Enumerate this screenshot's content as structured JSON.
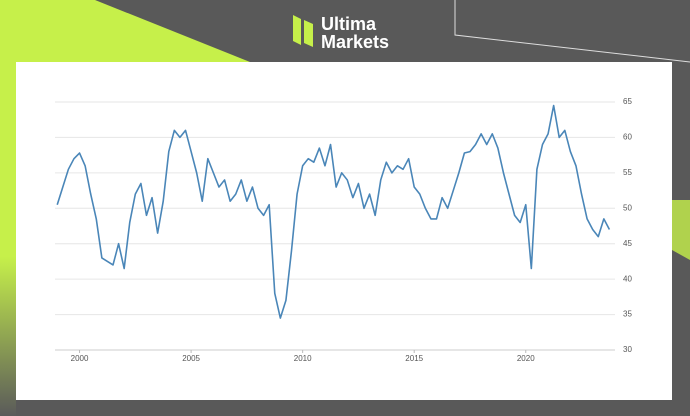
{
  "logo": {
    "line1": "Ultima",
    "line2": "Markets"
  },
  "chart_data": {
    "type": "line",
    "color": "#4a86b8",
    "grid": true,
    "x": [
      1999.0,
      1999.25,
      1999.5,
      1999.75,
      2000.0,
      2000.25,
      2000.5,
      2000.75,
      2001.0,
      2001.25,
      2001.5,
      2001.75,
      2002.0,
      2002.25,
      2002.5,
      2002.75,
      2003.0,
      2003.25,
      2003.5,
      2003.75,
      2004.0,
      2004.25,
      2004.5,
      2004.75,
      2005.0,
      2005.25,
      2005.5,
      2005.75,
      2006.0,
      2006.25,
      2006.5,
      2006.75,
      2007.0,
      2007.25,
      2007.5,
      2007.75,
      2008.0,
      2008.25,
      2008.5,
      2008.75,
      2009.0,
      2009.25,
      2009.5,
      2009.75,
      2010.0,
      2010.25,
      2010.5,
      2010.75,
      2011.0,
      2011.25,
      2011.5,
      2011.75,
      2012.0,
      2012.25,
      2012.5,
      2012.75,
      2013.0,
      2013.25,
      2013.5,
      2013.75,
      2014.0,
      2014.25,
      2014.5,
      2014.75,
      2015.0,
      2015.25,
      2015.5,
      2015.75,
      2016.0,
      2016.25,
      2016.5,
      2016.75,
      2017.0,
      2017.25,
      2017.5,
      2017.75,
      2018.0,
      2018.25,
      2018.5,
      2018.75,
      2019.0,
      2019.25,
      2019.5,
      2019.75,
      2020.0,
      2020.25,
      2020.5,
      2020.75,
      2021.0,
      2021.25,
      2021.5,
      2021.75,
      2022.0,
      2022.25,
      2022.5,
      2022.75,
      2023.0,
      2023.25,
      2023.5,
      2023.75
    ],
    "values": [
      50.5,
      53,
      55.5,
      57,
      57.8,
      56,
      52,
      48.5,
      43,
      42.5,
      42,
      45,
      41.5,
      48,
      52,
      53.5,
      49,
      51.5,
      46.5,
      51,
      58,
      61,
      60,
      61,
      58,
      55,
      51,
      57,
      55,
      53,
      54,
      51,
      52,
      54,
      51,
      53,
      50,
      49,
      50.5,
      38,
      34.5,
      37,
      44,
      52,
      56,
      57,
      56.5,
      58.5,
      56,
      59,
      53,
      55,
      54,
      51.5,
      53.5,
      50,
      52,
      49,
      54,
      56.5,
      55,
      56,
      55.5,
      57,
      53,
      52,
      50,
      48.5,
      48.5,
      51.5,
      50,
      52.5,
      55,
      57.8,
      58,
      59,
      60.5,
      59,
      60.5,
      58.5,
      55,
      52,
      49,
      48,
      50.5,
      41.5,
      55.5,
      59,
      60.5,
      64.5,
      60,
      61,
      58,
      56,
      52,
      48.5,
      47,
      46,
      48.5,
      47
    ],
    "xlim": [
      1998.9,
      2024.0
    ],
    "ylim": [
      30,
      65
    ],
    "xticks": [
      2000,
      2005,
      2010,
      2015,
      2020
    ],
    "yticks": [
      30,
      35,
      40,
      45,
      50,
      55,
      60,
      65
    ]
  }
}
